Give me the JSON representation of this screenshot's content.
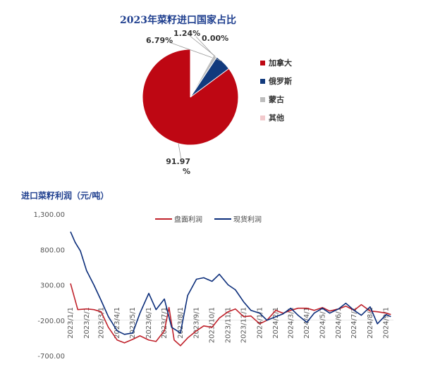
{
  "chart_data": [
    {
      "type": "pie",
      "title": "2023年菜籽进口国家占比",
      "slices": [
        {
          "name": "加拿大",
          "value": 91.97,
          "label": "91.97\n%",
          "color": "#be0713"
        },
        {
          "name": "俄罗斯",
          "value": 6.79,
          "label": "6.79%",
          "color": "#123a7d"
        },
        {
          "name": "蒙古",
          "value": 1.24,
          "label": "1.24%",
          "color": "#bdbdbd"
        },
        {
          "name": "其他",
          "value": 0.0,
          "label": "0.00%",
          "color": "#f2c9cc"
        }
      ],
      "legend_position": "right"
    },
    {
      "type": "line",
      "title": "进口菜籽利润（元/吨）",
      "yticks": [
        "1,300.00",
        "800.00",
        "300.00",
        "-200.00",
        "-700.00"
      ],
      "ylim": [
        -700,
        1300
      ],
      "xticks": [
        "2023/1/1",
        "2023/2/1",
        "2023/3/1",
        "2023/4/1",
        "2023/5/1",
        "2023/6/1",
        "2023/7/1",
        "2023/8/1",
        "2023/9/1",
        "2023/10/1",
        "2023/11/1",
        "2023/12/1",
        "2024/1/1",
        "2024/2/1",
        "2024/3/1",
        "2024/4/1",
        "2024/5/1",
        "2024/6/1",
        "2024/7/1",
        "2024/8/1",
        "2024/9/1"
      ],
      "legend_position": "top",
      "series": [
        {
          "name": "盘面利润",
          "color": "#c0222b",
          "x": [
            "2023/1/1",
            "2023/1/15",
            "2023/2/1",
            "2023/2/15",
            "2023/3/1",
            "2023/3/15",
            "2023/4/1",
            "2023/4/15",
            "2023/5/1",
            "2023/5/15",
            "2023/6/1",
            "2023/6/15",
            "2023/7/1",
            "2023/7/10",
            "2023/7/20",
            "2023/8/1",
            "2023/8/15",
            "2023/9/1",
            "2023/9/15",
            "2023/10/1",
            "2023/10/15",
            "2023/11/1",
            "2023/11/15",
            "2023/12/1",
            "2023/12/15",
            "2024/1/1",
            "2024/1/15",
            "2024/2/1",
            "2024/2/15",
            "2024/3/1",
            "2024/3/15",
            "2024/4/1",
            "2024/4/15",
            "2024/5/1",
            "2024/5/15",
            "2024/6/1",
            "2024/6/15",
            "2024/7/1",
            "2024/7/15",
            "2024/8/1",
            "2024/8/15",
            "2024/9/1",
            "2024/9/10"
          ],
          "values": [
            320,
            -50,
            -40,
            -50,
            -80,
            -300,
            -480,
            -520,
            -470,
            -420,
            -480,
            -500,
            -350,
            -20,
            -480,
            -560,
            -450,
            -350,
            -280,
            -300,
            -170,
            -80,
            -40,
            -150,
            -140,
            -250,
            -200,
            -60,
            -100,
            -60,
            -30,
            -30,
            -60,
            -20,
            -70,
            -40,
            0,
            -60,
            20,
            -70,
            -80,
            -100,
            -120
          ]
        },
        {
          "name": "现货利润",
          "color": "#0b2d7a",
          "x": [
            "2023/1/1",
            "2023/1/10",
            "2023/1/20",
            "2023/2/1",
            "2023/2/15",
            "2023/3/1",
            "2023/3/15",
            "2023/4/1",
            "2023/4/15",
            "2023/5/1",
            "2023/5/15",
            "2023/6/1",
            "2023/6/15",
            "2023/7/1",
            "2023/7/15",
            "2023/8/1",
            "2023/8/15",
            "2023/9/1",
            "2023/9/15",
            "2023/10/1",
            "2023/10/15",
            "2023/11/1",
            "2023/11/15",
            "2023/12/1",
            "2023/12/15",
            "2024/1/1",
            "2024/1/15",
            "2024/2/1",
            "2024/2/15",
            "2024/3/1",
            "2024/3/15",
            "2024/4/1",
            "2024/4/15",
            "2024/5/1",
            "2024/5/15",
            "2024/6/1",
            "2024/6/15",
            "2024/7/1",
            "2024/7/15",
            "2024/8/1",
            "2024/8/15",
            "2024/9/1",
            "2024/9/10"
          ],
          "values": [
            1050,
            900,
            780,
            500,
            300,
            80,
            -150,
            -350,
            -400,
            -380,
            -100,
            180,
            -50,
            100,
            -300,
            -380,
            150,
            380,
            400,
            350,
            450,
            300,
            230,
            60,
            -60,
            -100,
            -200,
            -150,
            -110,
            -30,
            -130,
            -230,
            -100,
            -30,
            -100,
            -40,
            40,
            -60,
            -130,
            -10,
            -250,
            -120,
            -150
          ]
        }
      ]
    }
  ]
}
